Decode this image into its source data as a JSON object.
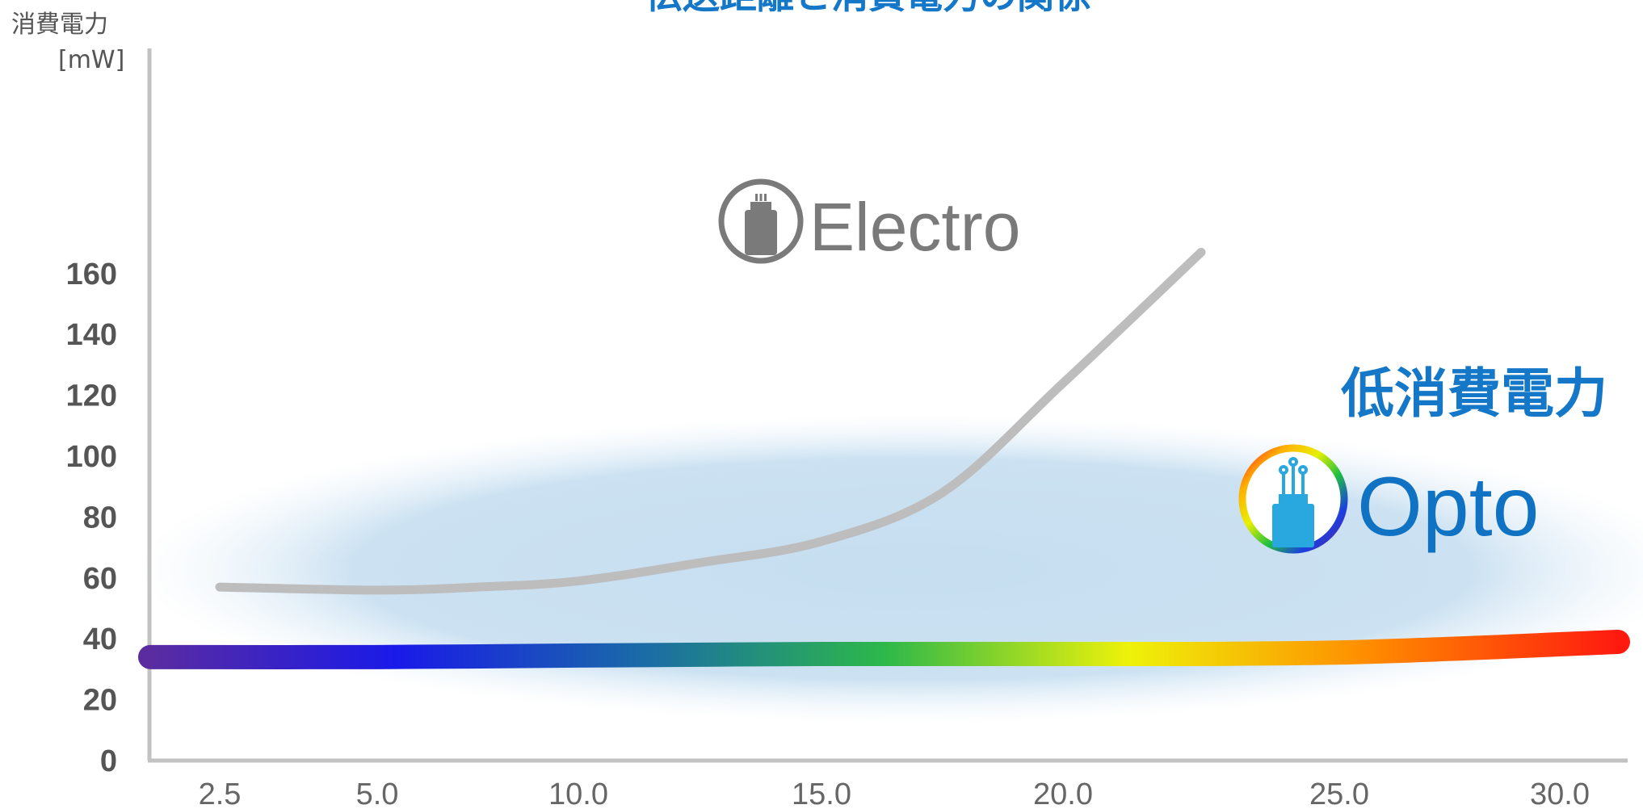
{
  "chart_data": {
    "type": "line",
    "title": "伝送距離と消費電力の関係",
    "ylabel": "消費電力",
    "yunit": "[mW]",
    "ylim": [
      0,
      170
    ],
    "yticks": [
      "0",
      "20",
      "40",
      "60",
      "80",
      "100",
      "120",
      "140",
      "160"
    ],
    "xtick_labels": [
      "2.5",
      "5.0",
      "10.0",
      "15.0",
      "20.0",
      "25.0",
      "30.0"
    ],
    "annotation": "低消費電力",
    "grid": false,
    "series": [
      {
        "name": "Electro",
        "color": "#bdbdbd",
        "icon": "copper-cable-icon",
        "x": [
          2.5,
          5.0,
          7.5,
          10.0,
          12.5,
          15.0,
          17.5,
          20.0,
          22.5
        ],
        "y": [
          57,
          56,
          57,
          59,
          65,
          72,
          88,
          124,
          167
        ]
      },
      {
        "name": "Opto",
        "color": "rainbow",
        "icon": "optical-fiber-icon",
        "x": [
          2.5,
          5.0,
          10.0,
          15.0,
          20.0,
          25.0,
          30.0
        ],
        "y": [
          34,
          34,
          34.5,
          35,
          35,
          35.5,
          39
        ]
      }
    ],
    "highlight_band_color": "#c5def0",
    "rainbow_stops": [
      "#5a2ca0",
      "#1a1ae8",
      "#1a6aa8",
      "#2db84a",
      "#eef20a",
      "#ff8a00",
      "#ff1a10"
    ]
  }
}
